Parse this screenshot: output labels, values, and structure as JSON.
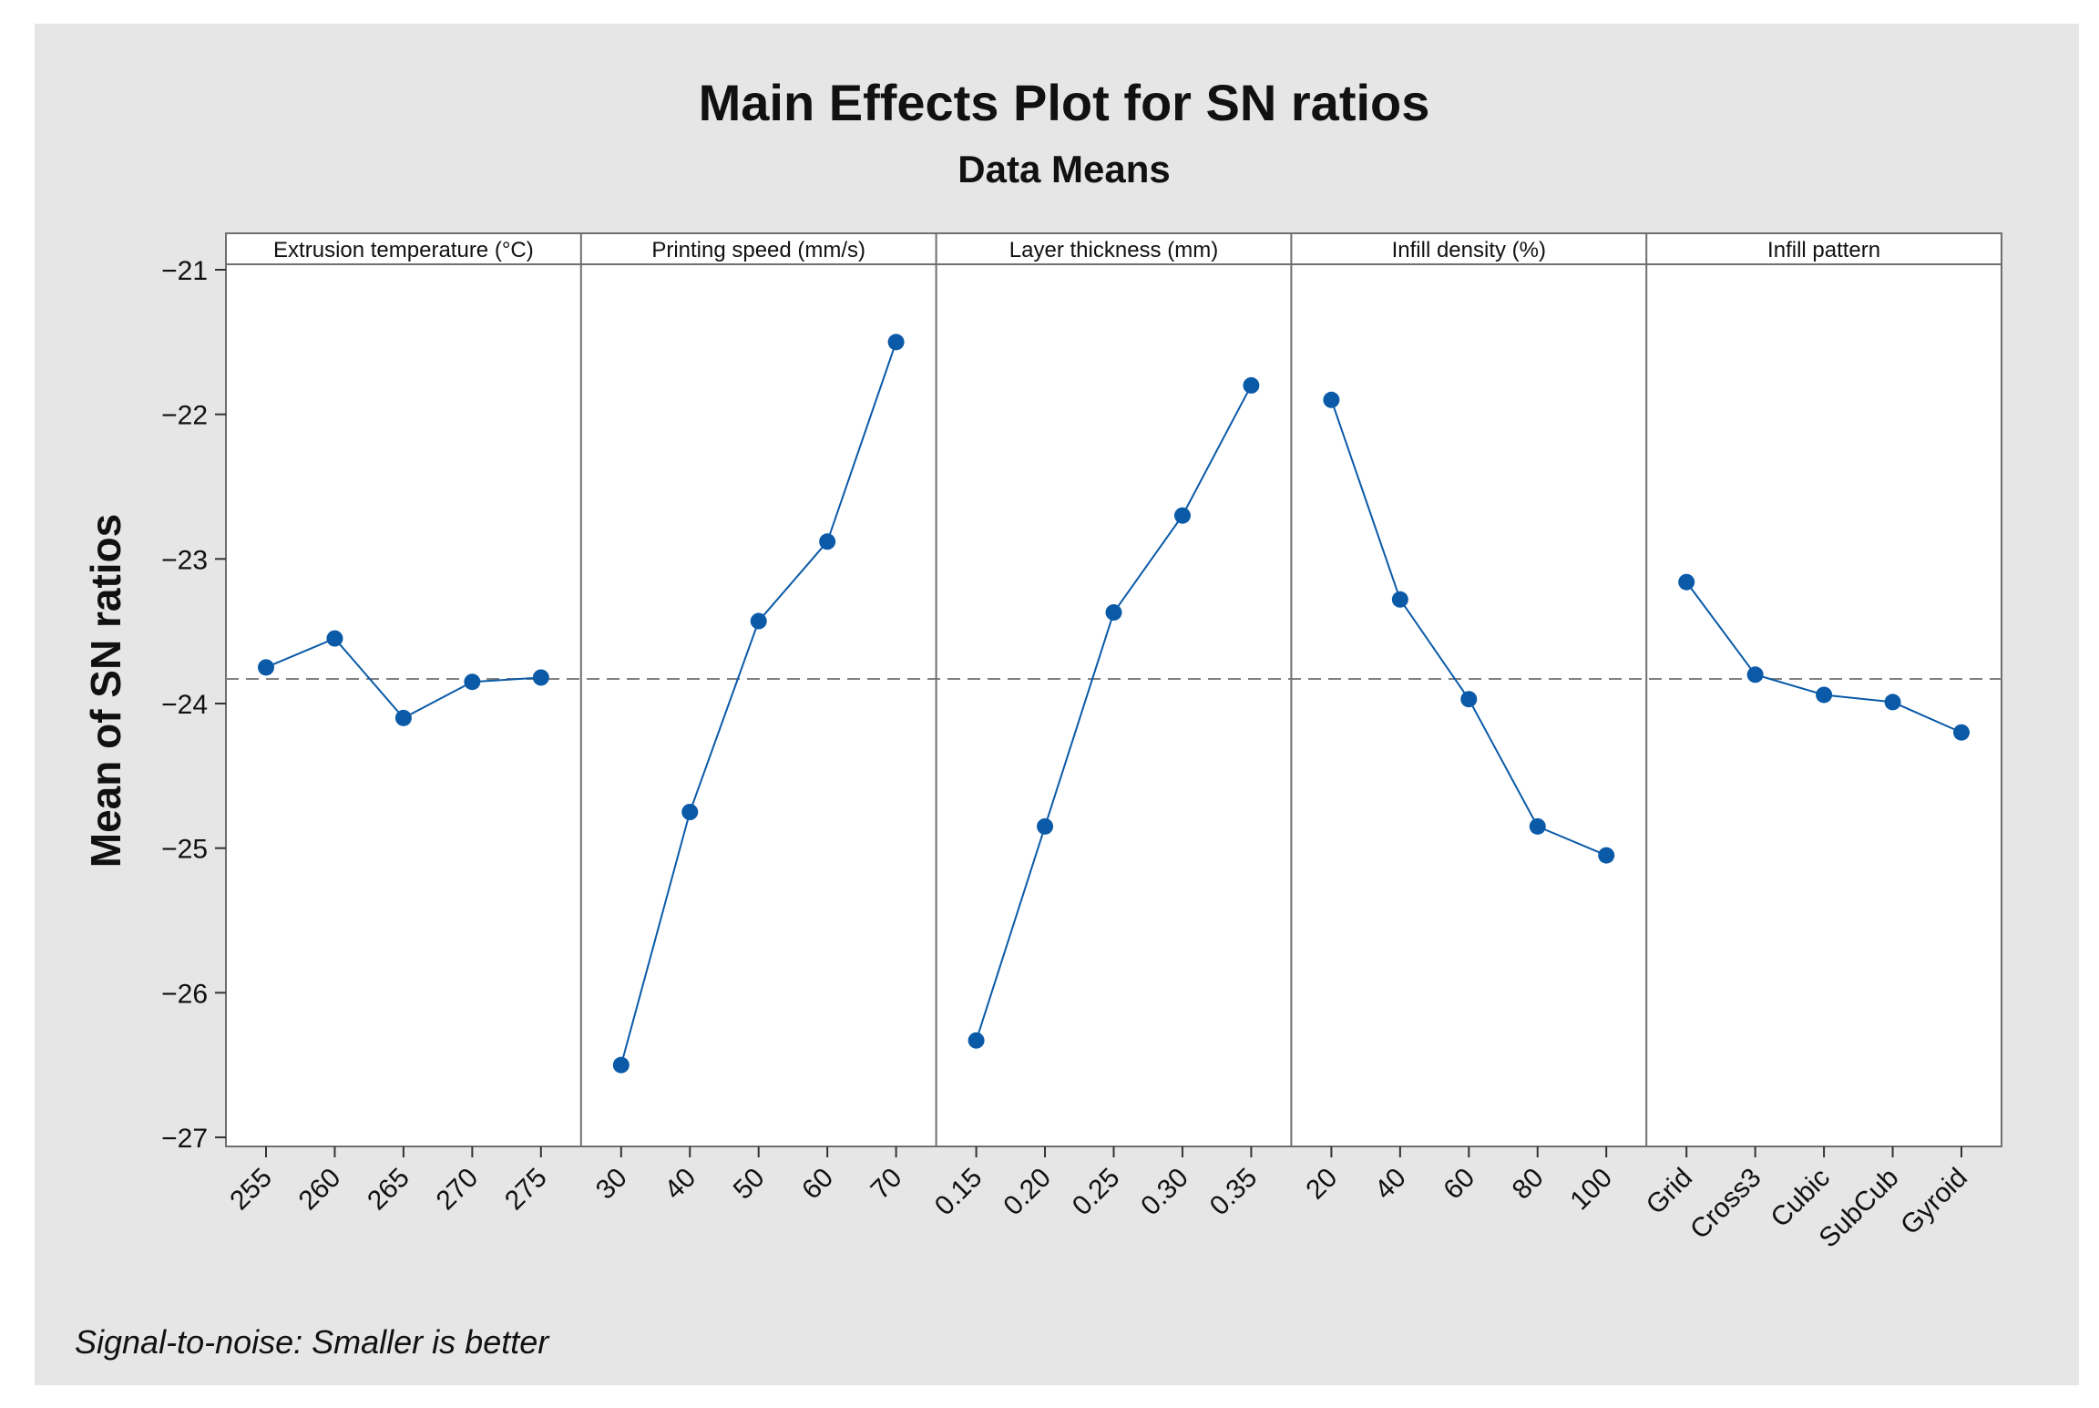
{
  "chart_data": {
    "type": "line",
    "title": "Main Effects Plot for SN ratios",
    "subtitle": "Data Means",
    "ylabel": "Mean of SN ratios",
    "ylim": [
      -27,
      -21
    ],
    "yticks": [
      -21,
      -22,
      -23,
      -24,
      -25,
      -26,
      -27
    ],
    "yticklabels": [
      "−21",
      "−22",
      "−23",
      "−24",
      "−25",
      "−26",
      "−27"
    ],
    "reference_line": -23.83,
    "footnote": "Signal-to-noise: Smaller is better",
    "colors": {
      "series": "#0a5aa8",
      "reference": "#808080",
      "background": "#e6e6e6"
    },
    "panels": [
      {
        "name": "Extrusion temperature (°C)",
        "categories": [
          "255",
          "260",
          "265",
          "270",
          "275"
        ],
        "values": [
          -23.75,
          -23.55,
          -24.1,
          -23.85,
          -23.82
        ]
      },
      {
        "name": "Printing speed (mm/s)",
        "categories": [
          "30",
          "40",
          "50",
          "60",
          "70"
        ],
        "values": [
          -26.5,
          -24.75,
          -23.43,
          -22.88,
          -21.5
        ]
      },
      {
        "name": "Layer thickness (mm)",
        "categories": [
          "0.15",
          "0.20",
          "0.25",
          "0.30",
          "0.35"
        ],
        "values": [
          -26.33,
          -24.85,
          -23.37,
          -22.7,
          -21.8
        ]
      },
      {
        "name": "Infill density (%)",
        "categories": [
          "20",
          "40",
          "60",
          "80",
          "100"
        ],
        "values": [
          -21.9,
          -23.28,
          -23.97,
          -24.85,
          -25.05
        ]
      },
      {
        "name": "Infill pattern",
        "categories": [
          "Grid",
          "Cross3",
          "Cubic",
          "SubCub",
          "Gyroid"
        ],
        "values": [
          -23.16,
          -23.8,
          -23.94,
          -23.99,
          -24.2
        ]
      }
    ]
  }
}
